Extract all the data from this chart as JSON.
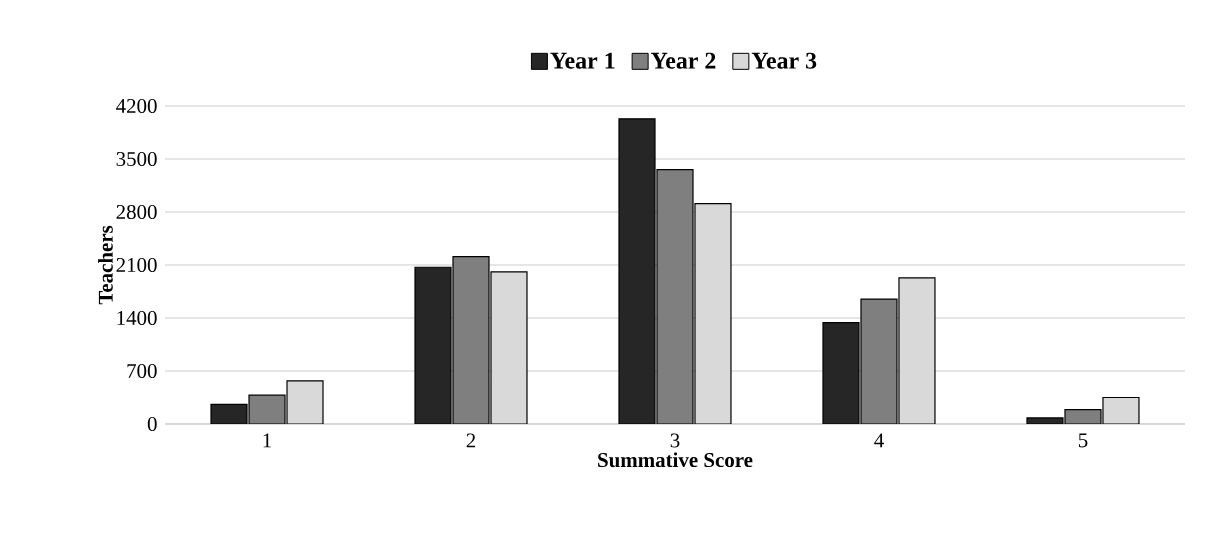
{
  "chart_data": {
    "type": "bar",
    "xlabel": "Summative Score",
    "ylabel": "Teachers",
    "categories": [
      "1",
      "2",
      "3",
      "4",
      "5"
    ],
    "series": [
      {
        "name": "Year 1",
        "color": "#262626",
        "values": [
          260,
          2070,
          4030,
          1340,
          80
        ]
      },
      {
        "name": "Year 2",
        "color": "#7f7f7f",
        "values": [
          380,
          2210,
          3360,
          1650,
          190
        ]
      },
      {
        "name": "Year 3",
        "color": "#d9d9d9",
        "values": [
          570,
          2010,
          2910,
          1930,
          350
        ]
      }
    ],
    "ylim": [
      0,
      4200
    ],
    "yticks": [
      0,
      700,
      1400,
      2100,
      2800,
      3500,
      4200
    ],
    "grid": "y",
    "legend": "top"
  }
}
